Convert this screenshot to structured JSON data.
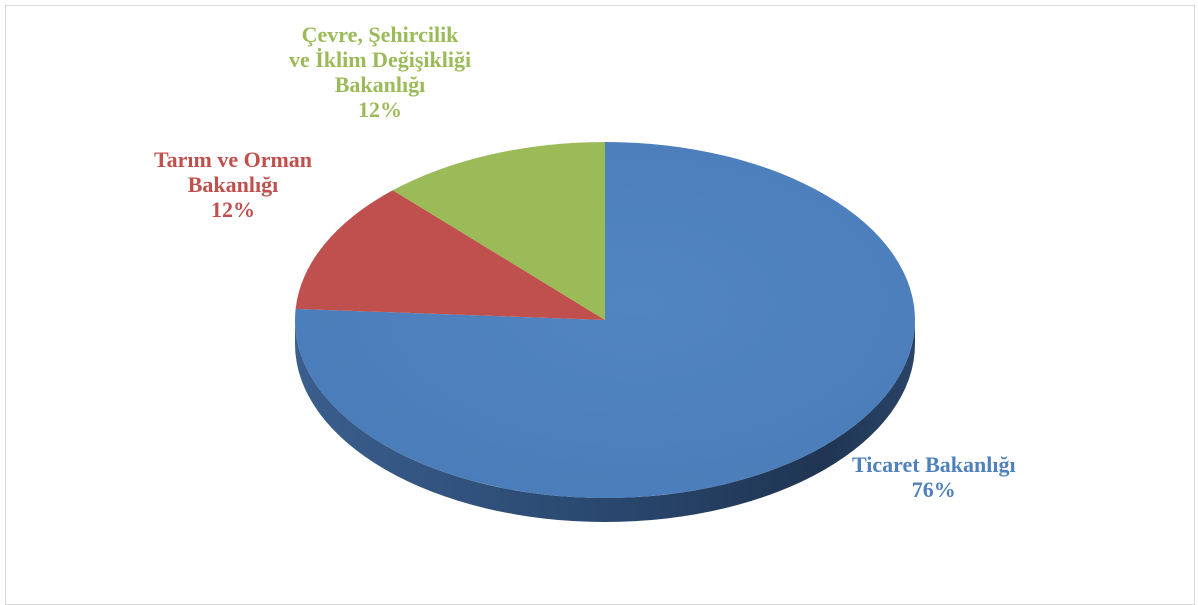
{
  "chart_data": {
    "type": "pie",
    "style": "3d",
    "categories": [
      "Ticaret Bakanlığı",
      "Tarım ve Orman Bakanlığı",
      "Çevre, Şehircilik ve İklim Değişikliği Bakanlığı"
    ],
    "values": [
      76,
      12,
      12
    ],
    "unit": "%",
    "colors": [
      "#4f81bd",
      "#c0504d",
      "#9bbb59"
    ],
    "legend": "none",
    "labels": [
      {
        "lines": [
          "Ticaret Bakanlığı"
        ],
        "percent": "76%",
        "color": "#4f81bd"
      },
      {
        "lines": [
          "Tarım ve Orman",
          "Bakanlığı"
        ],
        "percent": "12%",
        "color": "#c0504d"
      },
      {
        "lines": [
          "Çevre, Şehircilik",
          "ve İklim Değişikliği",
          "Bakanlığı"
        ],
        "percent": "12%",
        "color": "#9bbb59"
      }
    ]
  }
}
